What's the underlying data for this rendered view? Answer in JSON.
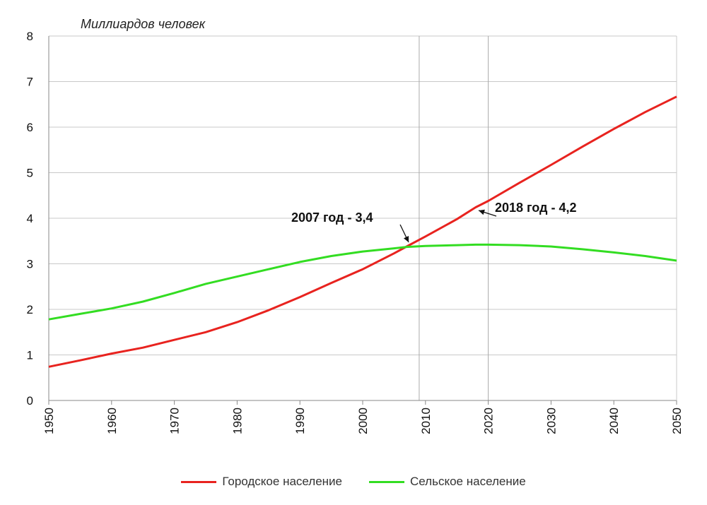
{
  "chart_data": {
    "type": "line",
    "ylabel": "Миллиардов человек",
    "xlabel": "",
    "xlim": [
      1950,
      2050
    ],
    "ylim": [
      0,
      8
    ],
    "xticks": [
      "1950",
      "1960",
      "1970",
      "1980",
      "1990",
      "2000",
      "2010",
      "2020",
      "2030",
      "2040",
      "2050"
    ],
    "yticks": [
      "0",
      "1",
      "2",
      "3",
      "4",
      "5",
      "6",
      "7",
      "8"
    ],
    "grid": true,
    "legend_position": "bottom",
    "series": [
      {
        "name": "Городское население",
        "color": "#e8231f",
        "x": [
          1950,
          1955,
          1960,
          1965,
          1970,
          1975,
          1980,
          1985,
          1990,
          1995,
          2000,
          2005,
          2007,
          2010,
          2015,
          2018,
          2020,
          2025,
          2030,
          2035,
          2040,
          2045,
          2050
        ],
        "y": [
          0.74,
          0.88,
          1.03,
          1.16,
          1.33,
          1.5,
          1.72,
          1.98,
          2.27,
          2.58,
          2.88,
          3.23,
          3.38,
          3.6,
          3.98,
          4.24,
          4.38,
          4.78,
          5.17,
          5.57,
          5.96,
          6.33,
          6.67
        ]
      },
      {
        "name": "Сельское население",
        "color": "#33dd22",
        "x": [
          1950,
          1955,
          1960,
          1965,
          1970,
          1975,
          1980,
          1985,
          1990,
          1995,
          2000,
          2005,
          2007,
          2010,
          2015,
          2018,
          2020,
          2025,
          2030,
          2035,
          2040,
          2045,
          2050
        ],
        "y": [
          1.78,
          1.9,
          2.02,
          2.17,
          2.36,
          2.56,
          2.72,
          2.88,
          3.04,
          3.17,
          3.27,
          3.34,
          3.37,
          3.39,
          3.41,
          3.42,
          3.42,
          3.41,
          3.38,
          3.32,
          3.25,
          3.17,
          3.07
        ]
      }
    ],
    "vlines": [
      2009,
      2020
    ],
    "annotations": [
      {
        "text": "2007 год - 3,4",
        "x": 2007,
        "y": 3.4
      },
      {
        "text": "2018 год - 4,2",
        "x": 2018,
        "y": 4.2
      }
    ]
  }
}
